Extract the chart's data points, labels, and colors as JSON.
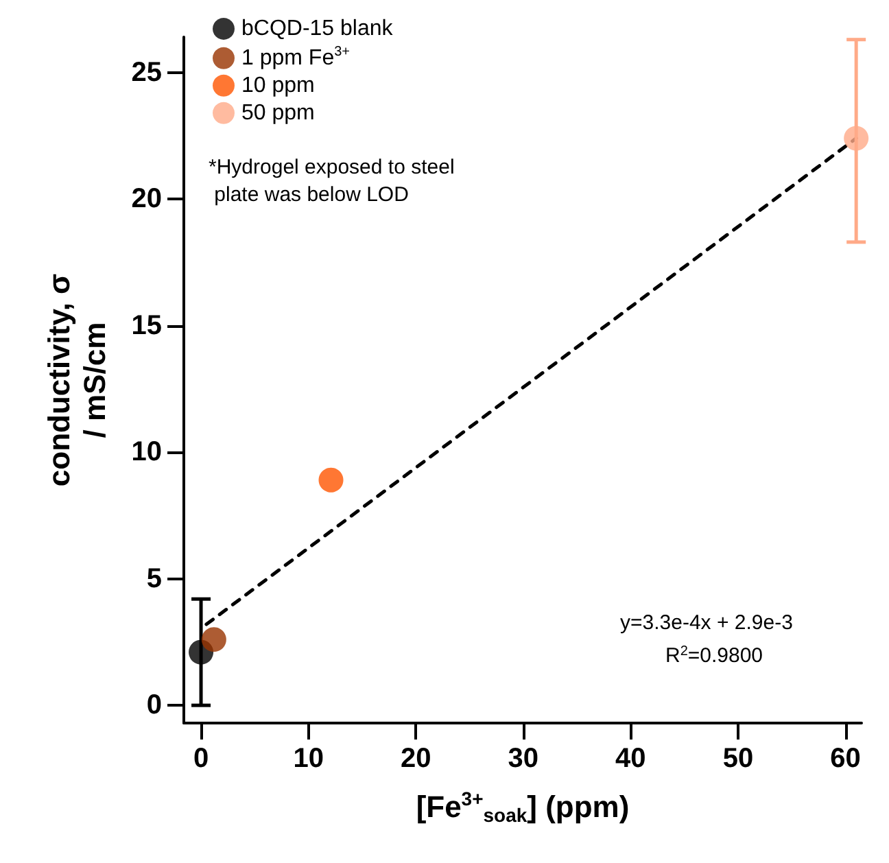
{
  "chart_data": {
    "type": "scatter",
    "xlabel": "[Fe$^{3+}$$_{soak}$] (ppm)",
    "ylabel": "conductivity, σ\n/ mS/cm",
    "xlim": [
      -1.6,
      61.5
    ],
    "xticks": [
      0,
      10,
      20,
      30,
      40,
      50,
      60
    ],
    "ylim": [
      -0.7,
      26.4
    ],
    "yticks": [
      0,
      5,
      10,
      15,
      20,
      25
    ],
    "grid": false,
    "legend": "top left",
    "marker": "circle",
    "series": [
      {
        "name": "bCQD-15 blank",
        "color": "#000000",
        "x": [
          0
        ],
        "values": [
          2.1
        ],
        "errors": [
          [
            0,
            4.2
          ]
        ]
      },
      {
        "name": "1 ppm Fe$^{3+}$",
        "color": "#993300",
        "x": [
          1.2
        ],
        "values": [
          2.6
        ]
      },
      {
        "name": "10 ppm",
        "color": "#ff5500",
        "x": [
          12.1
        ],
        "values": [
          8.9
        ]
      },
      {
        "name": "50 ppm",
        "color": "#ffaa88",
        "x": [
          61
        ],
        "values": [
          22.4
        ],
        "errors": [
          [
            18.3,
            26.3
          ]
        ]
      },
      {
        "type": "line",
        "color": "#000000",
        "line_style": "dashed",
        "marker": "none",
        "x": [
          0.5,
          61
        ],
        "values": [
          3.2,
          22.4
        ]
      }
    ],
    "annotations": [
      "*Hydrogel exposed to steel\n plate was below LOD",
      "y=3.3e-4x + 2.9e-3",
      "R$^{2}$=0.9800"
    ]
  }
}
